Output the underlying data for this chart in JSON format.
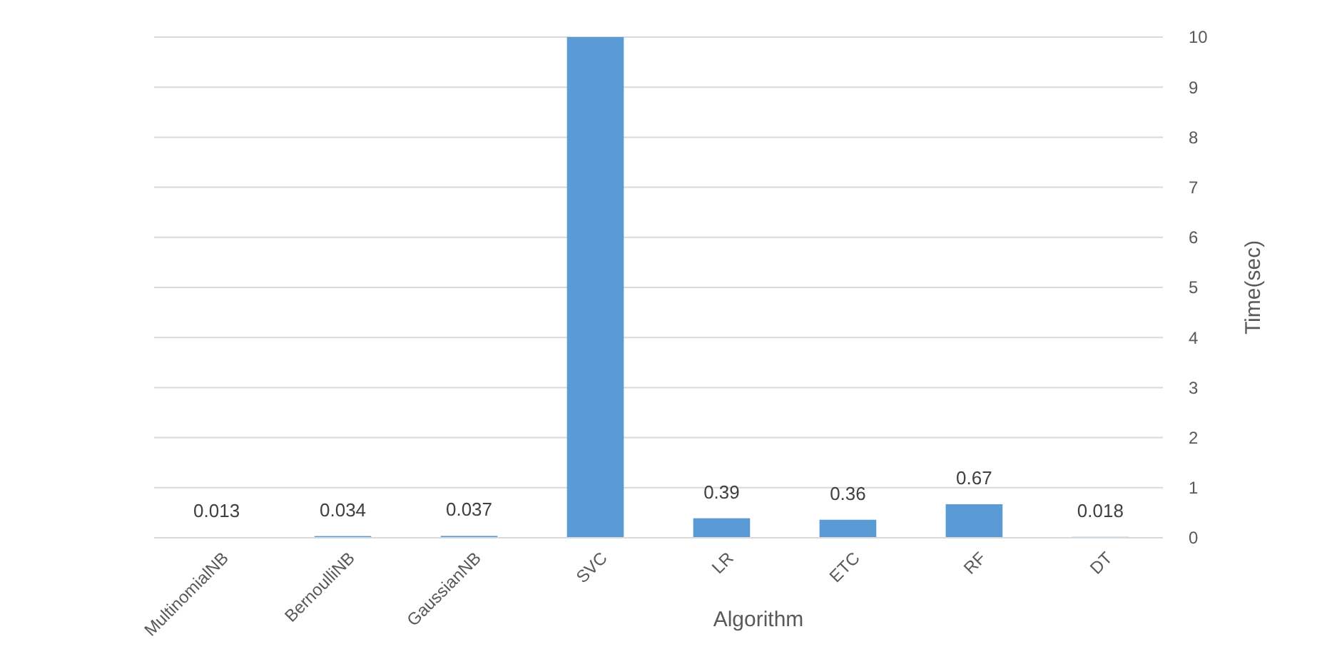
{
  "chart_data": {
    "type": "bar",
    "xlabel": "Algorithm",
    "ylabel": "Time(sec)",
    "categories": [
      "MultinomialNB",
      "BernoulliNB",
      "GaussianNB",
      "SVC",
      "LR",
      "ETC",
      "RF",
      "DT"
    ],
    "values": [
      0.013,
      0.034,
      0.037,
      10,
      0.39,
      0.36,
      0.67,
      0.018
    ],
    "value_labels": [
      "0.013",
      "0.034",
      "0.037",
      null,
      "0.39",
      "0.36",
      "0.67",
      "0.018"
    ],
    "color": "#5b9bd5",
    "ylim": [
      0,
      10
    ],
    "yticks": [
      0,
      1,
      2,
      3,
      4,
      5,
      6,
      7,
      8,
      9,
      10
    ],
    "grid": "y"
  }
}
